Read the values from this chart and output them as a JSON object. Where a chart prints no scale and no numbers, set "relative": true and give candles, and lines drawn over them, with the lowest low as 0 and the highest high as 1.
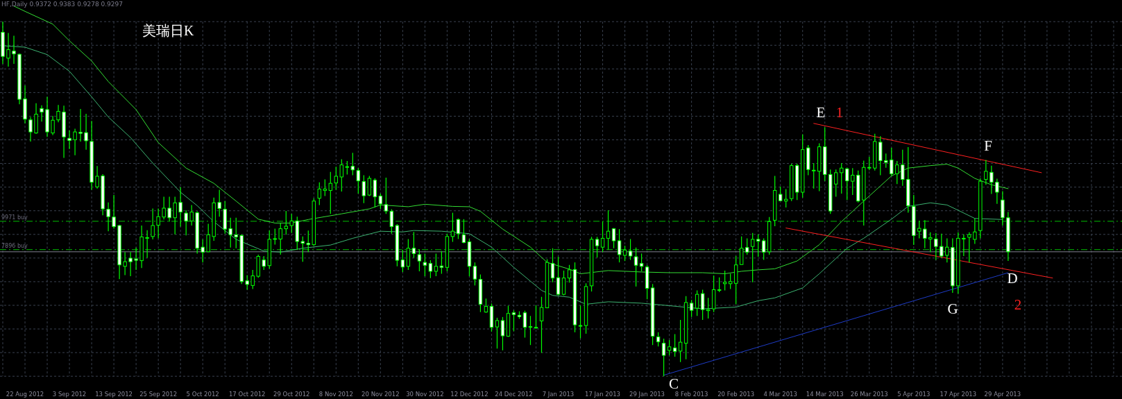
{
  "chart_data": {
    "type": "candlestick",
    "title": "美瑞日K",
    "relative": true,
    "grid": true,
    "color": "#00ff00",
    "categories": [
      null,
      null,
      null,
      null,
      "22 Aug 2012",
      null,
      null,
      null,
      null,
      null,
      null,
      null,
      "3 Sep 2012",
      null,
      null,
      null,
      null,
      null,
      null,
      null,
      "13 Sep 2012",
      null,
      null,
      null,
      null,
      null,
      null,
      null,
      "25 Sep 2012",
      null,
      null,
      null,
      null,
      null,
      null,
      null,
      "5 Oct 2012",
      null,
      null,
      null,
      null,
      null,
      null,
      null,
      "17 Oct 2012",
      null,
      null,
      null,
      null,
      null,
      null,
      null,
      "29 Oct 2012",
      null,
      null,
      null,
      null,
      null,
      null,
      null,
      "8 Nov 2012",
      null,
      null,
      null,
      null,
      null,
      null,
      null,
      "20 Nov 2012",
      null,
      null,
      null,
      null,
      null,
      null,
      null,
      "30 Nov 2012",
      null,
      null,
      null,
      null,
      null,
      null,
      null,
      "12 Dec 2012",
      null,
      null,
      null,
      null,
      null,
      null,
      null,
      "24 Dec 2012",
      null,
      null,
      null,
      null,
      null,
      null,
      null,
      "7 Jan 2013",
      null,
      null,
      null,
      null,
      null,
      null,
      null,
      "17 Jan 2013",
      null,
      null,
      null,
      null,
      null,
      null,
      null,
      "29 Jan 2013",
      null,
      null,
      null,
      null,
      null,
      null,
      null,
      "8 Feb 2013",
      null,
      null,
      null,
      null,
      null,
      null,
      null,
      "20 Feb 2013",
      null,
      null,
      null,
      null,
      null,
      null,
      null,
      "4 Mar 2013",
      null,
      null,
      null,
      null,
      null,
      null,
      null,
      "14 Mar 2013",
      null,
      null,
      null,
      null,
      null,
      null,
      null,
      "26 Mar 2013",
      null,
      null,
      null,
      null,
      null,
      null,
      null,
      "5 Apr 2013",
      null,
      null,
      null,
      null,
      null,
      null,
      null,
      "17 Apr 2013",
      null,
      null,
      null,
      null,
      null,
      null,
      null,
      "29 Apr 2013",
      null,
      null,
      null,
      null,
      null,
      null,
      null,
      null,
      null,
      null,
      null,
      null,
      null,
      null,
      null,
      null,
      null,
      null,
      null,
      null,
      null
    ],
    "ohlc": [
      [
        0.97,
        1.0,
        0.881,
        0.902
      ],
      [
        0.897,
        0.968,
        0.873,
        0.921
      ],
      [
        0.917,
        0.96,
        0.881,
        0.909
      ],
      [
        0.908,
        0.91,
        0.767,
        0.781
      ],
      [
        0.782,
        0.82,
        0.713,
        0.725
      ],
      [
        0.723,
        0.731,
        0.662,
        0.689
      ],
      [
        0.686,
        0.77,
        0.684,
        0.739
      ],
      [
        0.755,
        0.764,
        0.718,
        0.745
      ],
      [
        0.752,
        0.788,
        0.675,
        0.689
      ],
      [
        0.686,
        0.734,
        0.68,
        0.722
      ],
      [
        0.723,
        0.765,
        0.716,
        0.747
      ],
      [
        0.745,
        0.763,
        0.616,
        0.675
      ],
      [
        0.671,
        0.693,
        0.641,
        0.665
      ],
      [
        0.667,
        0.698,
        0.623,
        0.689
      ],
      [
        0.688,
        0.754,
        0.662,
        0.685
      ],
      [
        0.687,
        0.74,
        0.639,
        0.664
      ],
      [
        0.662,
        0.72,
        0.526,
        0.547
      ],
      [
        0.534,
        0.593,
        0.529,
        0.564
      ],
      [
        0.565,
        0.57,
        0.454,
        0.472
      ],
      [
        0.471,
        0.49,
        0.409,
        0.45
      ],
      [
        0.449,
        0.511,
        0.416,
        0.422
      ],
      [
        0.425,
        0.427,
        0.274,
        0.314
      ],
      [
        0.31,
        0.35,
        0.285,
        0.323
      ],
      [
        0.333,
        0.35,
        0.282,
        0.323
      ],
      [
        0.331,
        0.363,
        0.3,
        0.327
      ],
      [
        0.326,
        0.425,
        0.305,
        0.393
      ],
      [
        0.391,
        0.412,
        0.334,
        0.391
      ],
      [
        0.394,
        0.473,
        0.386,
        0.425
      ],
      [
        0.426,
        0.473,
        0.389,
        0.45
      ],
      [
        0.449,
        0.506,
        0.442,
        0.474
      ],
      [
        0.474,
        0.506,
        0.436,
        0.447
      ],
      [
        0.447,
        0.506,
        0.4,
        0.489
      ],
      [
        0.49,
        0.533,
        0.422,
        0.463
      ],
      [
        0.46,
        0.468,
        0.397,
        0.438
      ],
      [
        0.438,
        0.483,
        0.425,
        0.463
      ],
      [
        0.461,
        0.465,
        0.346,
        0.361
      ],
      [
        0.364,
        0.386,
        0.321,
        0.35
      ],
      [
        0.351,
        0.43,
        0.35,
        0.399
      ],
      [
        0.394,
        0.504,
        0.382,
        0.489
      ],
      [
        0.49,
        0.526,
        0.45,
        0.473
      ],
      [
        0.471,
        0.494,
        0.402,
        0.415
      ],
      [
        0.416,
        0.447,
        0.363,
        0.399
      ],
      [
        0.399,
        0.447,
        0.361,
        0.393
      ],
      [
        0.397,
        0.4,
        0.26,
        0.267
      ],
      [
        0.269,
        0.285,
        0.244,
        0.259
      ],
      [
        0.256,
        0.3,
        0.246,
        0.283
      ],
      [
        0.282,
        0.343,
        0.278,
        0.338
      ],
      [
        0.328,
        0.339,
        0.3,
        0.31
      ],
      [
        0.312,
        0.411,
        0.303,
        0.386
      ],
      [
        0.388,
        0.416,
        0.371,
        0.388
      ],
      [
        0.387,
        0.432,
        0.343,
        0.416
      ],
      [
        0.416,
        0.466,
        0.399,
        0.423
      ],
      [
        0.425,
        0.458,
        0.404,
        0.438
      ],
      [
        0.438,
        0.45,
        0.356,
        0.38
      ],
      [
        0.38,
        0.394,
        0.323,
        0.375
      ],
      [
        0.375,
        0.411,
        0.35,
        0.371
      ],
      [
        0.371,
        0.502,
        0.368,
        0.494
      ],
      [
        0.502,
        0.547,
        0.483,
        0.528
      ],
      [
        0.524,
        0.555,
        0.508,
        0.528
      ],
      [
        0.524,
        0.576,
        0.458,
        0.544
      ],
      [
        0.545,
        0.591,
        0.526,
        0.564
      ],
      [
        0.562,
        0.612,
        0.521,
        0.596
      ],
      [
        0.591,
        0.607,
        0.569,
        0.591
      ],
      [
        0.592,
        0.63,
        0.567,
        0.582
      ],
      [
        0.58,
        0.587,
        0.515,
        0.551
      ],
      [
        0.549,
        0.567,
        0.488,
        0.509
      ],
      [
        0.511,
        0.565,
        0.508,
        0.558
      ],
      [
        0.553,
        0.558,
        0.476,
        0.506
      ],
      [
        0.508,
        0.515,
        0.472,
        0.486
      ],
      [
        0.484,
        0.56,
        0.458,
        0.466
      ],
      [
        0.465,
        0.471,
        0.402,
        0.422
      ],
      [
        0.425,
        0.429,
        0.31,
        0.327
      ],
      [
        0.328,
        0.357,
        0.294,
        0.308
      ],
      [
        0.31,
        0.387,
        0.3,
        0.361
      ],
      [
        0.361,
        0.407,
        0.334,
        0.346
      ],
      [
        0.343,
        0.358,
        0.296,
        0.325
      ],
      [
        0.321,
        0.346,
        0.282,
        0.313
      ],
      [
        0.318,
        0.327,
        0.277,
        0.296
      ],
      [
        0.296,
        0.346,
        0.282,
        0.31
      ],
      [
        0.311,
        0.353,
        0.289,
        0.307
      ],
      [
        0.307,
        0.402,
        0.296,
        0.394
      ],
      [
        0.394,
        0.461,
        0.379,
        0.409
      ],
      [
        0.442,
        0.445,
        0.387,
        0.402
      ],
      [
        0.399,
        0.443,
        0.375,
        0.377
      ],
      [
        0.379,
        0.387,
        0.282,
        0.31
      ],
      [
        0.31,
        0.321,
        0.256,
        0.274
      ],
      [
        0.273,
        0.287,
        0.181,
        0.203
      ],
      [
        0.181,
        0.219,
        0.179,
        0.197
      ],
      [
        0.197,
        0.205,
        0.126,
        0.138
      ],
      [
        0.139,
        0.165,
        0.078,
        0.157
      ],
      [
        0.157,
        0.167,
        0.073,
        0.114
      ],
      [
        0.113,
        0.199,
        0.111,
        0.177
      ],
      [
        0.179,
        0.186,
        0.127,
        0.174
      ],
      [
        0.172,
        0.183,
        0.162,
        0.168
      ],
      [
        0.179,
        0.185,
        0.109,
        0.138
      ],
      [
        0.14,
        0.17,
        0.088,
        0.14
      ],
      [
        0.138,
        0.2,
        0.134,
        0.138
      ],
      [
        0.156,
        0.224,
        0.066,
        0.194
      ],
      [
        0.193,
        0.33,
        0.192,
        0.321
      ],
      [
        0.318,
        0.361,
        0.265,
        0.277
      ],
      [
        0.278,
        0.337,
        0.228,
        0.231
      ],
      [
        0.231,
        0.298,
        0.228,
        0.277
      ],
      [
        0.277,
        0.314,
        0.264,
        0.3
      ],
      [
        0.301,
        0.321,
        0.124,
        0.145
      ],
      [
        0.143,
        0.199,
        0.107,
        0.143
      ],
      [
        0.143,
        0.262,
        0.12,
        0.253
      ],
      [
        0.255,
        0.393,
        0.239,
        0.386
      ],
      [
        0.386,
        0.393,
        0.335,
        0.368
      ],
      [
        0.364,
        0.436,
        0.35,
        0.389
      ],
      [
        0.389,
        0.468,
        0.357,
        0.409
      ],
      [
        0.416,
        0.418,
        0.361,
        0.382
      ],
      [
        0.382,
        0.415,
        0.321,
        0.343
      ],
      [
        0.341,
        0.368,
        0.325,
        0.356
      ],
      [
        0.353,
        0.387,
        0.328,
        0.339
      ],
      [
        0.337,
        0.363,
        0.253,
        0.313
      ],
      [
        0.318,
        0.346,
        0.296,
        0.31
      ],
      [
        0.308,
        0.313,
        0.217,
        0.248
      ],
      [
        0.249,
        0.26,
        0.088,
        0.113
      ],
      [
        0.111,
        0.124,
        0.084,
        0.097
      ],
      [
        0.093,
        0.106,
        0.0,
        0.059
      ],
      [
        0.073,
        0.102,
        0.059,
        0.083
      ],
      [
        0.08,
        0.119,
        0.055,
        0.07
      ],
      [
        0.071,
        0.159,
        0.04,
        0.096
      ],
      [
        0.093,
        0.226,
        0.048,
        0.208
      ],
      [
        0.206,
        0.215,
        0.167,
        0.186
      ],
      [
        0.192,
        0.242,
        0.17,
        0.231
      ],
      [
        0.233,
        0.244,
        0.159,
        0.188
      ],
      [
        0.185,
        0.221,
        0.163,
        0.188
      ],
      [
        0.19,
        0.284,
        0.181,
        0.244
      ],
      [
        0.244,
        0.279,
        0.237,
        0.244
      ],
      [
        0.261,
        0.298,
        0.242,
        0.265
      ],
      [
        0.261,
        0.289,
        0.246,
        0.267
      ],
      [
        0.262,
        0.339,
        0.203,
        0.314
      ],
      [
        0.315,
        0.394,
        0.314,
        0.361
      ],
      [
        0.363,
        0.389,
        0.343,
        0.35
      ],
      [
        0.366,
        0.404,
        0.265,
        0.386
      ],
      [
        0.386,
        0.4,
        0.337,
        0.381
      ],
      [
        0.382,
        0.389,
        0.328,
        0.35
      ],
      [
        0.351,
        0.449,
        0.343,
        0.436
      ],
      [
        0.44,
        0.565,
        0.423,
        0.524
      ],
      [
        0.513,
        0.535,
        0.494,
        0.495
      ],
      [
        0.494,
        0.528,
        0.476,
        0.499
      ],
      [
        0.501,
        0.599,
        0.494,
        0.594
      ],
      [
        0.594,
        0.599,
        0.497,
        0.519
      ],
      [
        0.519,
        0.682,
        0.504,
        0.639
      ],
      [
        0.644,
        0.652,
        0.567,
        0.583
      ],
      [
        0.581,
        0.601,
        0.529,
        0.581
      ],
      [
        0.578,
        0.657,
        0.522,
        0.647
      ],
      [
        0.647,
        0.702,
        0.551,
        0.569
      ],
      [
        0.569,
        0.583,
        0.458,
        0.466
      ],
      [
        0.542,
        0.583,
        0.506,
        0.574
      ],
      [
        0.574,
        0.601,
        0.515,
        0.587
      ],
      [
        0.585,
        0.588,
        0.497,
        0.551
      ],
      [
        0.55,
        0.587,
        0.511,
        0.567
      ],
      [
        0.567,
        0.58,
        0.49,
        0.494
      ],
      [
        0.497,
        0.608,
        0.425,
        0.589
      ],
      [
        0.587,
        0.619,
        0.581,
        0.589
      ],
      [
        0.587,
        0.684,
        0.58,
        0.662
      ],
      [
        0.66,
        0.677,
        0.567,
        0.608
      ],
      [
        0.608,
        0.628,
        0.588,
        0.603
      ],
      [
        0.61,
        0.644,
        0.565,
        0.571
      ],
      [
        0.571,
        0.607,
        0.542,
        0.596
      ],
      [
        0.596,
        0.639,
        0.537,
        0.555
      ],
      [
        0.555,
        0.646,
        0.461,
        0.481
      ],
      [
        0.479,
        0.511,
        0.37,
        0.397
      ],
      [
        0.409,
        0.438,
        0.389,
        0.417
      ],
      [
        0.415,
        0.44,
        0.361,
        0.389
      ],
      [
        0.387,
        0.406,
        0.35,
        0.391
      ],
      [
        0.387,
        0.404,
        0.328,
        0.366
      ],
      [
        0.366,
        0.402,
        0.334,
        0.339
      ],
      [
        0.341,
        0.389,
        0.321,
        0.364
      ],
      [
        0.363,
        0.389,
        0.235,
        0.255
      ],
      [
        0.255,
        0.406,
        0.233,
        0.389
      ],
      [
        0.389,
        0.4,
        0.339,
        0.389
      ],
      [
        0.392,
        0.406,
        0.321,
        0.399
      ],
      [
        0.386,
        0.445,
        0.373,
        0.407
      ],
      [
        0.411,
        0.558,
        0.389,
        0.55
      ],
      [
        0.555,
        0.61,
        0.54,
        0.578
      ],
      [
        0.575,
        0.594,
        0.514,
        0.547
      ],
      [
        0.547,
        0.557,
        0.486,
        0.519
      ],
      [
        0.497,
        0.522,
        0.425,
        0.447
      ],
      [
        0.447,
        0.463,
        0.325,
        0.351
      ],
      null,
      null,
      null,
      null,
      null,
      null,
      null,
      null,
      null,
      null,
      null,
      null,
      null,
      null,
      null,
      null,
      null,
      null,
      null,
      null
    ],
    "series": [
      {
        "type": "line",
        "color": "#33dd33",
        "values": [
          null,
          null,
          1.044,
          null,
          1.029,
          null,
          null,
          null,
          null,
          0.993,
          null,
          null,
          0.946,
          null,
          null,
          null,
          0.889,
          null,
          null,
          0.831,
          null,
          null,
          null,
          null,
          0.752,
          null,
          null,
          null,
          0.659,
          null,
          null,
          null,
          null,
          0.587,
          null,
          null,
          null,
          null,
          0.544,
          null,
          null,
          null,
          0.494,
          null,
          null,
          null,
          0.443,
          null,
          null,
          0.432,
          null,
          null,
          0.432,
          null,
          null,
          0.442,
          null,
          null,
          null,
          null,
          null,
          0.458,
          null,
          null,
          null,
          null,
          0.472,
          null,
          0.483,
          null,
          null,
          null,
          null,
          0.478,
          null,
          null,
          0.485,
          null,
          null,
          null,
          null,
          0.479,
          null,
          null,
          0.478,
          null,
          0.465,
          null,
          null,
          null,
          0.415,
          null,
          null,
          null,
          null,
          0.364,
          null,
          null,
          0.321,
          null,
          null,
          null,
          0.302,
          null,
          0.289,
          null,
          null,
          null,
          null,
          0.298,
          null,
          null,
          null,
          null,
          null,
          0.294,
          null,
          null,
          null,
          null,
          0.292,
          null,
          null,
          null,
          null,
          null,
          0.292,
          null,
          null,
          null,
          0.289,
          null,
          null,
          0.296,
          null,
          null,
          0.3,
          null,
          null,
          0.303,
          null,
          null,
          null,
          0.325,
          null,
          null,
          null,
          0.371,
          null,
          null,
          null,
          0.436,
          null,
          null,
          null,
          0.494,
          null,
          null,
          null,
          null,
          0.565,
          null,
          null,
          0.587,
          null,
          null,
          null,
          0.594,
          null,
          null,
          0.598,
          null,
          0.587,
          null,
          null,
          0.558,
          null,
          null,
          0.54,
          null,
          null,
          0.529,
          null,
          null,
          null,
          null,
          null,
          null,
          null,
          null,
          null,
          null,
          null,
          null,
          null,
          null,
          null,
          null,
          null,
          null,
          null,
          null
        ]
      },
      {
        "type": "line",
        "color": "#3cb371",
        "values": [
          0.932,
          null,
          null,
          null,
          0.928,
          null,
          null,
          null,
          0.907,
          null,
          null,
          null,
          0.86,
          null,
          null,
          null,
          0.788,
          null,
          null,
          0.731,
          null,
          null,
          null,
          0.673,
          null,
          null,
          null,
          0.601,
          null,
          null,
          null,
          null,
          0.519,
          null,
          null,
          0.481,
          null,
          null,
          0.436,
          null,
          null,
          null,
          0.386,
          null,
          null,
          null,
          null,
          0.353,
          null,
          null,
          0.35,
          null,
          null,
          null,
          0.361,
          null,
          null,
          null,
          null,
          0.37,
          null,
          null,
          null,
          0.389,
          null,
          null,
          null,
          null,
          0.409,
          null,
          null,
          null,
          0.407,
          null,
          0.411,
          null,
          null,
          null,
          null,
          0.409,
          null,
          null,
          null,
          null,
          0.402,
          null,
          null,
          null,
          0.364,
          null,
          null,
          null,
          0.307,
          null,
          null,
          null,
          null,
          0.242,
          null,
          0.228,
          null,
          null,
          0.223,
          null,
          null,
          0.203,
          null,
          null,
          null,
          0.21,
          null,
          null,
          null,
          null,
          null,
          0.206,
          null,
          null,
          null,
          null,
          0.199,
          null,
          null,
          null,
          null,
          null,
          0.19,
          null,
          null,
          null,
          null,
          null,
          0.195,
          null,
          null,
          null,
          0.213,
          null,
          null,
          0.221,
          null,
          null,
          null,
          null,
          0.249,
          null,
          null,
          0.289,
          null,
          null,
          null,
          null,
          0.361,
          null,
          null,
          0.389,
          null,
          null,
          null,
          null,
          0.443,
          null,
          null,
          0.479,
          null,
          null,
          null,
          0.489,
          null,
          null,
          0.483,
          null,
          0.468,
          null,
          null,
          0.445,
          null,
          null,
          null,
          null,
          0.442,
          null,
          null,
          null,
          null,
          null,
          null,
          null,
          null,
          null,
          null,
          null,
          null,
          null,
          null,
          null,
          null,
          null,
          null,
          null,
          null,
          null
        ]
      },
      {
        "type": "line",
        "color": "#ff2020",
        "values": [
          null,
          null,
          null,
          null,
          null,
          null,
          null,
          null,
          null,
          null,
          null,
          null,
          null,
          null,
          null,
          null,
          null,
          null,
          null,
          null,
          null,
          null,
          null,
          null,
          null,
          null,
          null,
          null,
          null,
          null,
          null,
          null,
          null,
          null,
          null,
          null,
          null,
          null,
          null,
          null,
          null,
          null,
          null,
          null,
          null,
          null,
          null,
          null,
          null,
          null,
          null,
          null,
          null,
          null,
          null,
          null,
          null,
          null,
          null,
          null,
          null,
          null,
          null,
          null,
          null,
          null,
          null,
          null,
          null,
          null,
          null,
          null,
          null,
          null,
          null,
          null,
          null,
          null,
          null,
          null,
          null,
          null,
          null,
          null,
          null,
          null,
          null,
          null,
          null,
          null,
          null,
          null,
          null,
          null,
          null,
          null,
          null,
          null,
          null,
          null,
          null,
          null,
          null,
          null,
          null,
          null,
          null,
          null,
          null,
          null,
          null,
          null,
          null,
          null,
          null,
          null,
          null,
          null,
          null,
          null,
          null,
          null,
          null,
          null,
          null,
          null,
          null,
          null,
          null,
          null,
          null,
          null,
          null,
          null,
          null,
          null,
          null,
          null,
          null,
          null,
          null,
          null,
          null,
          null,
          null,
          null,
          0.713,
          null,
          null,
          null,
          null,
          null,
          null,
          null,
          null,
          null,
          null,
          null,
          null,
          null,
          null,
          null,
          null,
          null,
          null,
          null,
          null,
          null,
          null,
          null,
          null,
          null,
          null,
          null,
          null,
          null,
          null,
          null,
          null,
          null,
          null,
          null,
          null,
          null,
          null,
          null,
          null,
          0.574,
          null,
          null,
          null,
          null,
          null,
          null,
          null,
          null,
          null,
          null,
          null,
          null,
          null,
          null
        ]
      },
      {
        "type": "line",
        "color": "#ff2020",
        "values": [
          null,
          null,
          null,
          null,
          null,
          null,
          null,
          null,
          null,
          null,
          null,
          null,
          null,
          null,
          null,
          null,
          null,
          null,
          null,
          null,
          null,
          null,
          null,
          null,
          null,
          null,
          null,
          null,
          null,
          null,
          null,
          null,
          null,
          null,
          null,
          null,
          null,
          null,
          null,
          null,
          null,
          null,
          null,
          null,
          null,
          null,
          null,
          null,
          null,
          null,
          null,
          null,
          null,
          null,
          null,
          null,
          null,
          null,
          null,
          null,
          null,
          null,
          null,
          null,
          null,
          null,
          null,
          null,
          null,
          null,
          null,
          null,
          null,
          null,
          null,
          null,
          null,
          null,
          null,
          null,
          null,
          null,
          null,
          null,
          null,
          null,
          null,
          null,
          null,
          null,
          null,
          null,
          null,
          null,
          null,
          null,
          null,
          null,
          null,
          null,
          null,
          null,
          null,
          null,
          null,
          null,
          null,
          null,
          null,
          null,
          null,
          null,
          null,
          null,
          null,
          null,
          null,
          null,
          null,
          null,
          null,
          null,
          null,
          null,
          null,
          null,
          null,
          null,
          null,
          null,
          null,
          null,
          null,
          null,
          null,
          null,
          null,
          null,
          null,
          null,
          null,
          0.418,
          null,
          null,
          null,
          null,
          null,
          null,
          null,
          null,
          null,
          null,
          null,
          null,
          null,
          null,
          null,
          null,
          null,
          null,
          null,
          null,
          null,
          null,
          null,
          null,
          null,
          null,
          null,
          null,
          null,
          null,
          null,
          null,
          null,
          null,
          null,
          null,
          null,
          null,
          null,
          null,
          null,
          null,
          null,
          null,
          null,
          null,
          null,
          0.277,
          null,
          null,
          null,
          null,
          null,
          null,
          null,
          null,
          null,
          null,
          null,
          null
        ]
      },
      {
        "type": "line",
        "color": "#1e3cc8",
        "values": [
          null,
          null,
          null,
          null,
          null,
          null,
          null,
          null,
          null,
          null,
          null,
          null,
          null,
          null,
          null,
          null,
          null,
          null,
          null,
          null,
          null,
          null,
          null,
          null,
          null,
          null,
          null,
          null,
          null,
          null,
          null,
          null,
          null,
          null,
          null,
          null,
          null,
          null,
          null,
          null,
          null,
          null,
          null,
          null,
          null,
          null,
          null,
          null,
          null,
          null,
          null,
          null,
          null,
          null,
          null,
          null,
          null,
          null,
          null,
          null,
          null,
          null,
          null,
          null,
          null,
          null,
          null,
          null,
          null,
          null,
          null,
          null,
          null,
          null,
          null,
          null,
          null,
          null,
          null,
          null,
          null,
          null,
          null,
          null,
          null,
          null,
          null,
          null,
          null,
          null,
          null,
          null,
          null,
          null,
          null,
          null,
          null,
          null,
          null,
          null,
          null,
          null,
          null,
          null,
          null,
          null,
          null,
          null,
          null,
          null,
          null,
          null,
          null,
          null,
          null,
          null,
          null,
          null,
          null,
          0.003,
          null,
          null,
          null,
          null,
          null,
          null,
          null,
          null,
          null,
          null,
          null,
          null,
          null,
          null,
          null,
          null,
          null,
          null,
          null,
          null,
          null,
          null,
          null,
          null,
          null,
          null,
          null,
          null,
          null,
          null,
          null,
          null,
          null,
          null,
          null,
          null,
          null,
          null,
          null,
          null,
          null,
          null,
          null,
          null,
          null,
          null,
          null,
          null,
          null,
          null,
          null,
          null,
          null,
          null,
          null,
          null,
          null,
          null,
          null,
          null,
          null,
          0.292,
          null,
          null,
          null,
          null,
          null,
          null,
          null,
          null,
          null,
          null,
          null,
          null,
          null,
          null,
          null,
          null,
          null,
          null,
          null,
          null
        ]
      }
    ],
    "ref_lines": [
      {
        "axis": "y",
        "value": 0.437,
        "label": "9971 buy",
        "color": "#00c000",
        "line_style": "dashed"
      },
      {
        "axis": "y",
        "value": 0.357,
        "label": "7896 buy",
        "color": "#00c000",
        "line_style": "dashed"
      },
      {
        "axis": "y",
        "value": 0.351,
        "color": "#808090",
        "line_style": "solid"
      }
    ],
    "annotations": [
      "HF,Daily  0.9372 0.9383 0.9278 0.9297",
      "E",
      "1",
      "F",
      "C",
      "G",
      "D",
      "2"
    ]
  }
}
